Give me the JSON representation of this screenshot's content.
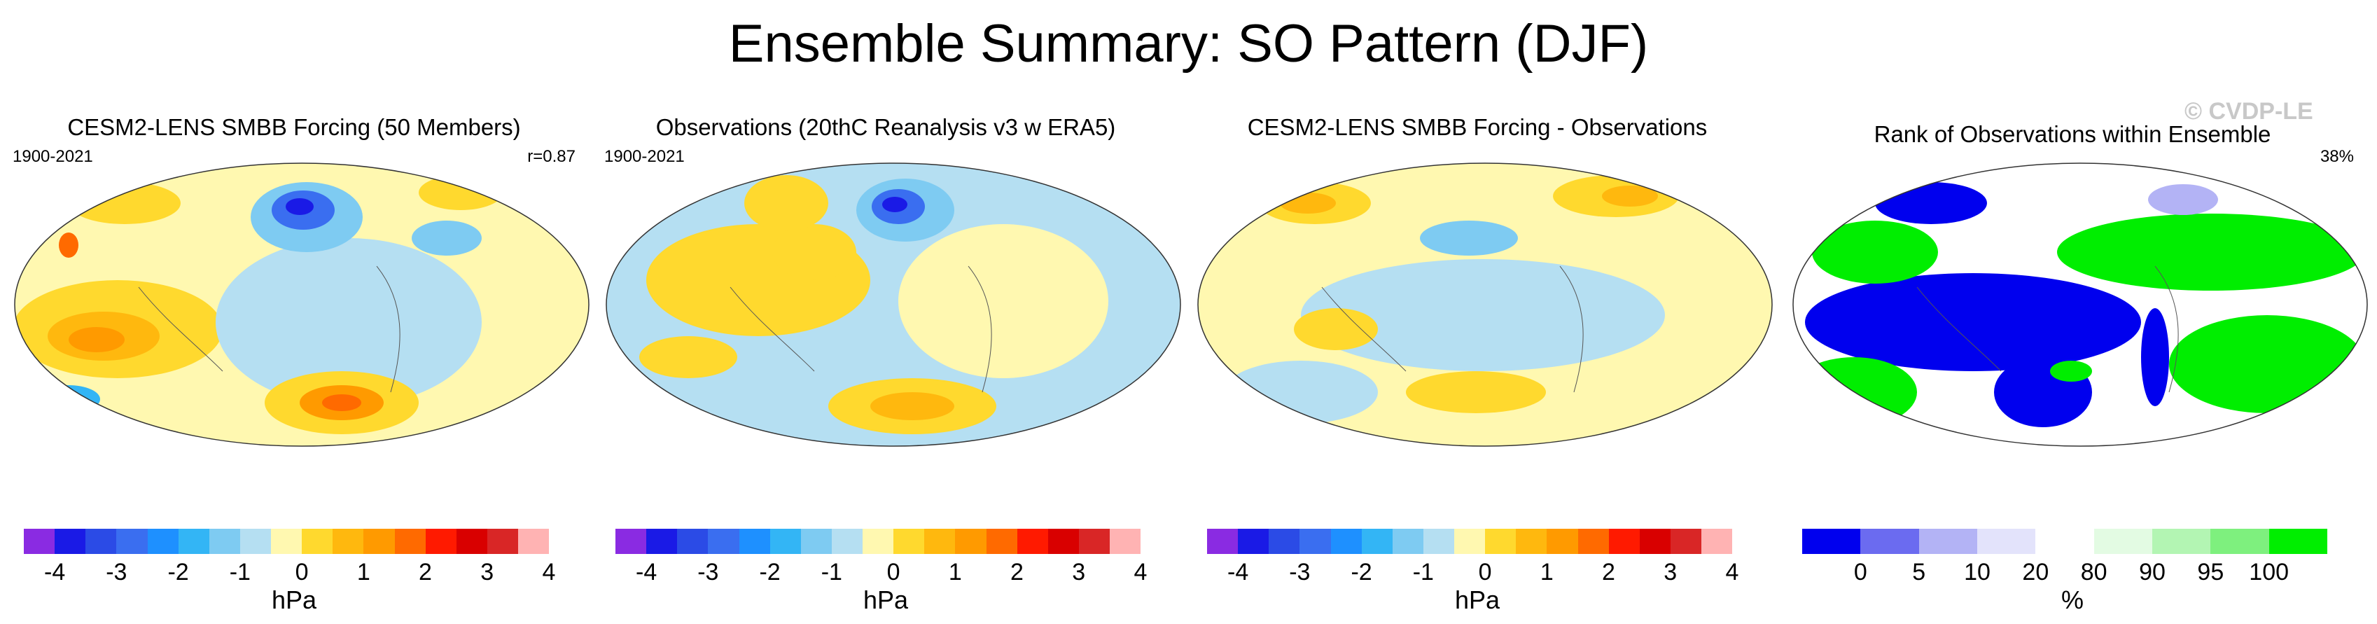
{
  "title": "Ensemble Summary: SO Pattern (DJF)",
  "watermark": "© CVDP-LE",
  "chart_data": [
    {
      "type": "heatmap",
      "title": "CESM2-LENS SMBB Forcing (50 Members)",
      "period": "1900-2021",
      "stat": "r=0.87",
      "units": "hPa",
      "colorbar_ticks": [
        "-4",
        "-3",
        "-2",
        "-1",
        "0",
        "1",
        "2",
        "3",
        "4"
      ],
      "palette": [
        "#8a2be2",
        "#1a1ae6",
        "#2b4be6",
        "#3a6ef0",
        "#1e90ff",
        "#33b5f5",
        "#7ecbf2",
        "#b5dff2",
        "#fff8b0",
        "#ffd92e",
        "#ffb80e",
        "#ff9a00",
        "#ff6a00",
        "#ff1a00",
        "#d90000",
        "#d92626",
        "#ffb3b3"
      ]
    },
    {
      "type": "heatmap",
      "title": "Observations (20thC Reanalysis v3 w ERA5)",
      "period": "1900-2021",
      "stat": "",
      "units": "hPa",
      "colorbar_ticks": [
        "-4",
        "-3",
        "-2",
        "-1",
        "0",
        "1",
        "2",
        "3",
        "4"
      ],
      "palette": [
        "#8a2be2",
        "#1a1ae6",
        "#2b4be6",
        "#3a6ef0",
        "#1e90ff",
        "#33b5f5",
        "#7ecbf2",
        "#b5dff2",
        "#fff8b0",
        "#ffd92e",
        "#ffb80e",
        "#ff9a00",
        "#ff6a00",
        "#ff1a00",
        "#d90000",
        "#d92626",
        "#ffb3b3"
      ]
    },
    {
      "type": "heatmap",
      "title": "CESM2-LENS SMBB Forcing - Observations",
      "period": "",
      "stat": "",
      "units": "hPa",
      "colorbar_ticks": [
        "-4",
        "-3",
        "-2",
        "-1",
        "0",
        "1",
        "2",
        "3",
        "4"
      ],
      "palette": [
        "#8a2be2",
        "#1a1ae6",
        "#2b4be6",
        "#3a6ef0",
        "#1e90ff",
        "#33b5f5",
        "#7ecbf2",
        "#b5dff2",
        "#fff8b0",
        "#ffd92e",
        "#ffb80e",
        "#ff9a00",
        "#ff6a00",
        "#ff1a00",
        "#d90000",
        "#d92626",
        "#ffb3b3"
      ]
    },
    {
      "type": "heatmap",
      "title": "Rank of Observations within Ensemble",
      "period": "",
      "stat": "38%",
      "units": "%",
      "colorbar_ticks": [
        "0",
        "5",
        "10",
        "20",
        "80",
        "90",
        "95",
        "100"
      ],
      "palette": [
        "#0000ee",
        "#6b6bf0",
        "#b3b3f5",
        "#e3e3fb",
        "#ffffff",
        "#e3fbe3",
        "#b3f5b3",
        "#7ef07e",
        "#00ee00"
      ]
    }
  ]
}
